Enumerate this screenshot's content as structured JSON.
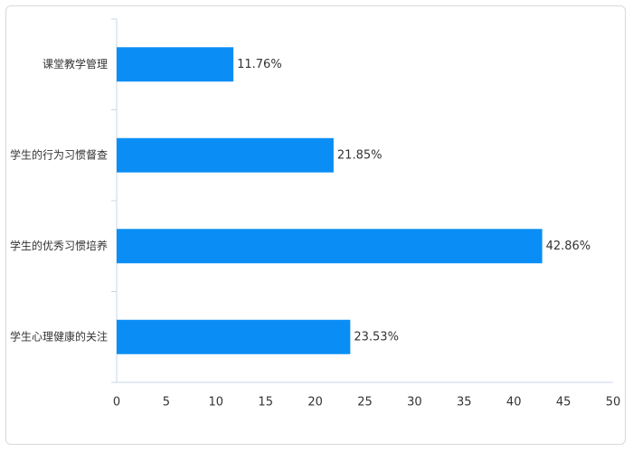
{
  "chart_data": {
    "type": "bar",
    "orientation": "horizontal",
    "categories": [
      "课堂教学管理",
      "学生的行为习惯督查",
      "学生的优秀习惯培养",
      "学生心理健康的关注"
    ],
    "values": [
      11.76,
      21.85,
      42.86,
      23.53
    ],
    "value_labels": [
      "11.76%",
      "21.85%",
      "42.86%",
      "23.53%"
    ],
    "xlim": [
      0,
      50
    ],
    "xticks": [
      0,
      5,
      10,
      15,
      20,
      25,
      30,
      35,
      40,
      45,
      50
    ],
    "grid": false,
    "colors": {
      "bar": "#0a8ef5",
      "axis": "#c7d7ea",
      "text": "#333333"
    }
  }
}
